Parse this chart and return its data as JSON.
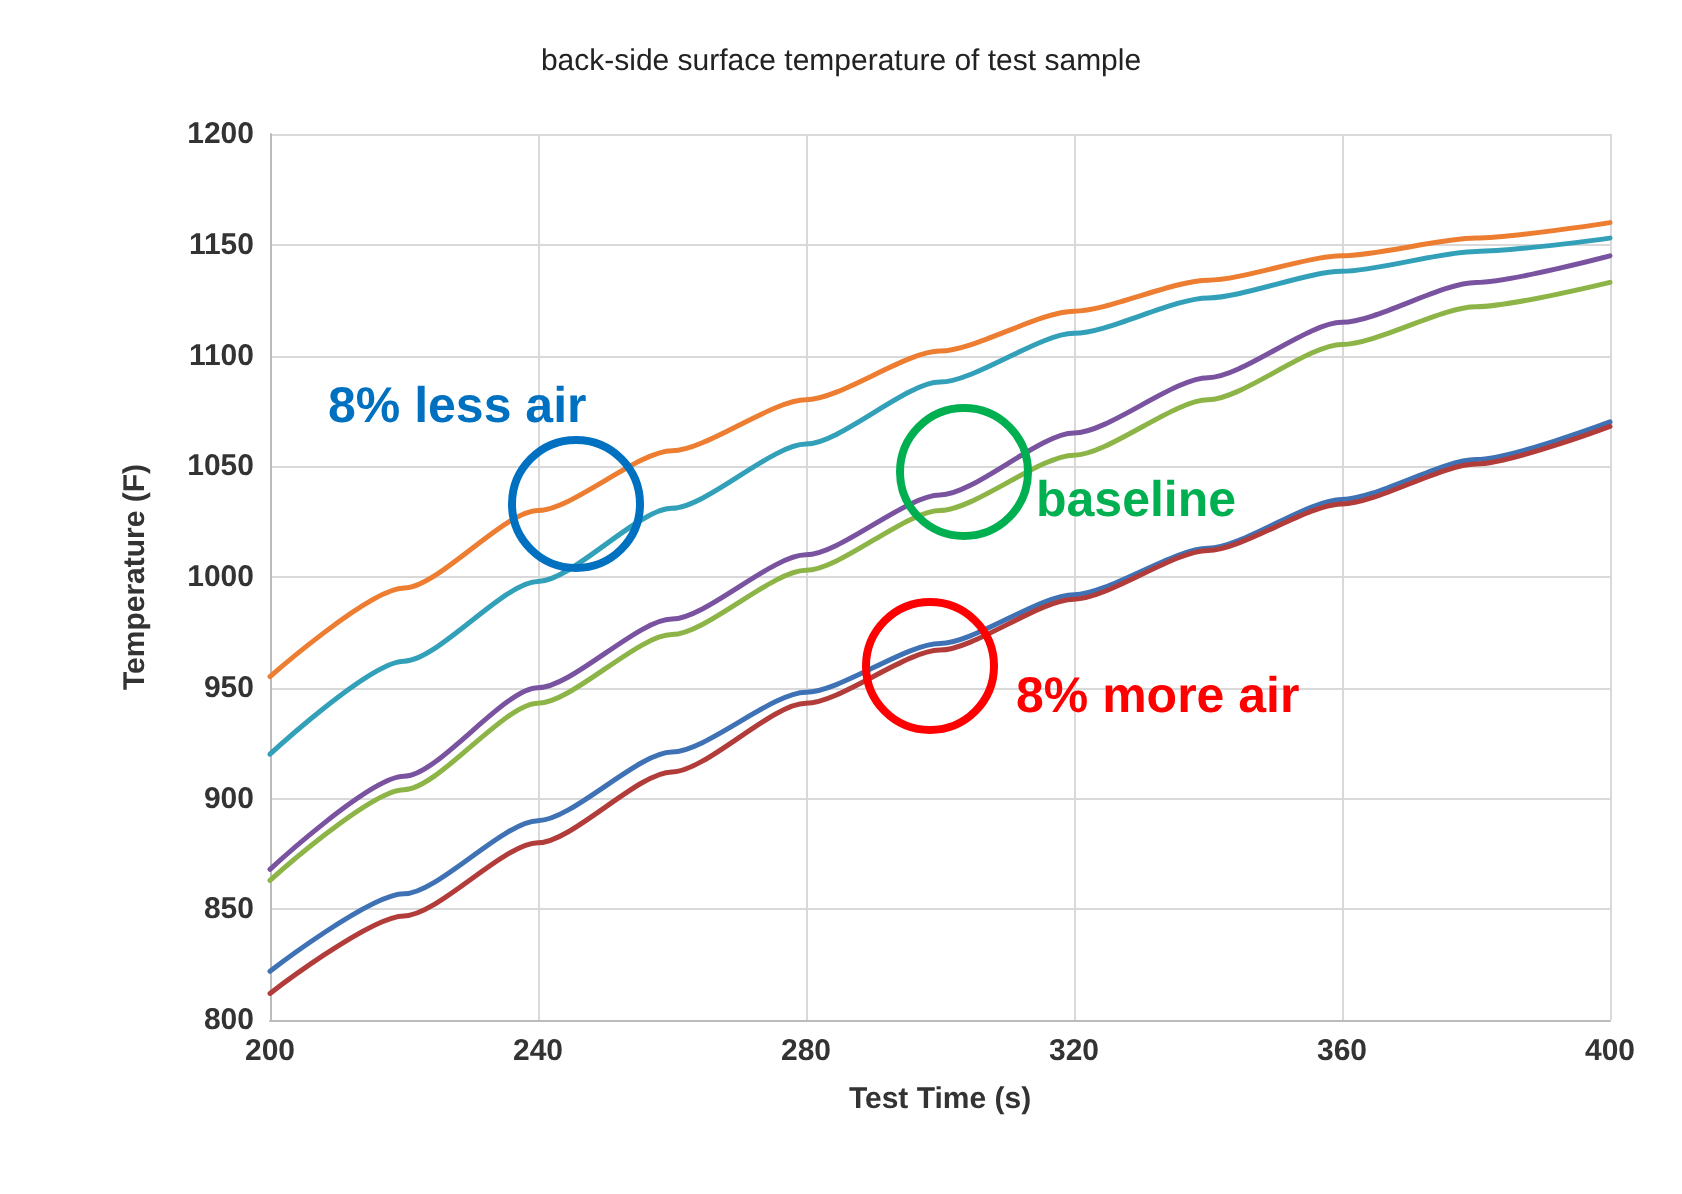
{
  "chart_data": {
    "type": "line",
    "title": "back-side surface temperature of test sample",
    "xlabel": "Test Time (s)",
    "ylabel": "Temperature (F)",
    "x": [
      200,
      220,
      240,
      260,
      280,
      300,
      320,
      340,
      360,
      380,
      400
    ],
    "series": [
      {
        "color": "#ed7d31",
        "values": [
          955,
          995,
          1030,
          1057,
          1080,
          1102,
          1120,
          1134,
          1145,
          1153,
          1160
        ]
      },
      {
        "color": "#31a0b8",
        "values": [
          920,
          962,
          998,
          1031,
          1060,
          1088,
          1110,
          1126,
          1138,
          1147,
          1153
        ]
      },
      {
        "color": "#7a53a0",
        "values": [
          868,
          910,
          950,
          981,
          1010,
          1037,
          1065,
          1090,
          1115,
          1133,
          1145
        ]
      },
      {
        "color": "#8db446",
        "values": [
          863,
          904,
          943,
          974,
          1003,
          1030,
          1055,
          1080,
          1105,
          1122,
          1133
        ]
      },
      {
        "color": "#3f72b5",
        "values": [
          822,
          857,
          890,
          921,
          948,
          970,
          992,
          1013,
          1035,
          1053,
          1070
        ]
      },
      {
        "color": "#b23c3a",
        "values": [
          812,
          847,
          880,
          912,
          943,
          967,
          990,
          1012,
          1033,
          1051,
          1068
        ]
      }
    ],
    "annotations": [
      "8% less air",
      "baseline",
      "8% more air"
    ],
    "xlim": [
      200,
      400
    ],
    "xticks": [
      200,
      240,
      280,
      320,
      360,
      400
    ],
    "ylim": [
      800,
      1200
    ],
    "yticks": [
      800,
      850,
      900,
      950,
      1000,
      1050,
      1100,
      1150,
      1200
    ],
    "grid": true,
    "marker": "none",
    "line_style": "solid"
  }
}
